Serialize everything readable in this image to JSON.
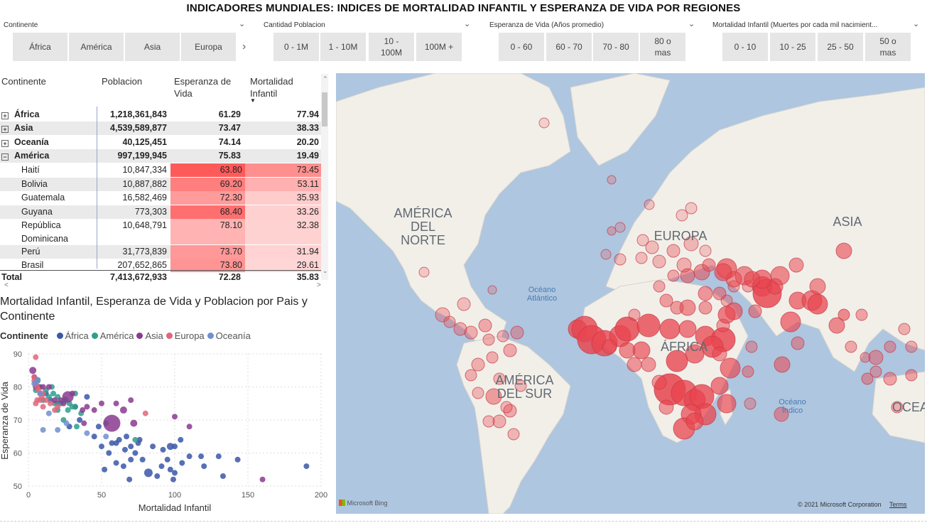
{
  "title": "INDICADORES MUNDIALES: INDICES DE MORTALIDAD INFANTIL Y ESPERANZA DE VIDA POR REGIONES",
  "slicers": [
    {
      "header": "Continente",
      "chips": [
        "África",
        "América",
        "Asia",
        "Europa"
      ],
      "more_icon": "chevron-right-icon"
    },
    {
      "header": "Cantidad Poblacion",
      "chips": [
        "0 - 1M",
        "1 - 10M",
        "10 - 100M",
        "100M +"
      ]
    },
    {
      "header": "Esperanza de Vida (Años promedio)",
      "chips": [
        "0 - 60",
        "60 - 70",
        "70 - 80",
        "80 o mas"
      ]
    },
    {
      "header": "Mortalidad Infantil (Muertes por cada mil nacimient...",
      "chips": [
        "0 - 10",
        "10 - 25",
        "25 - 50",
        "50 o mas"
      ]
    }
  ],
  "table": {
    "headers": {
      "continent": "Continente",
      "population": "Poblacion",
      "life": "Esperanza de Vida",
      "mortality": "Mortalidad Infantil"
    },
    "rows": [
      {
        "name": "África",
        "pop": "1,218,361,843",
        "life": "61.29",
        "mort": "77.94",
        "level": 0,
        "expand": "+"
      },
      {
        "name": "Asia",
        "pop": "4,539,589,877",
        "life": "73.47",
        "mort": "38.33",
        "level": 0,
        "expand": "+"
      },
      {
        "name": "Oceanía",
        "pop": "40,125,451",
        "life": "74.14",
        "mort": "20.20",
        "level": 0,
        "expand": "+"
      },
      {
        "name": "América",
        "pop": "997,199,945",
        "life": "75.83",
        "mort": "19.49",
        "level": 0,
        "expand": "−"
      },
      {
        "name": "Haití",
        "pop": "10,847,334",
        "life": "63.80",
        "mort": "73.45",
        "level": 1
      },
      {
        "name": "Bolivia",
        "pop": "10,887,882",
        "life": "69.20",
        "mort": "53.11",
        "level": 1
      },
      {
        "name": "Guatemala",
        "pop": "16,582,469",
        "life": "72.30",
        "mort": "35.93",
        "level": 1
      },
      {
        "name": "Guyana",
        "pop": "773,303",
        "life": "68.40",
        "mort": "33.26",
        "level": 1
      },
      {
        "name": "República Dominicana",
        "pop": "10,648,791",
        "life": "78.10",
        "mort": "32.38",
        "level": 1
      },
      {
        "name": "Perú",
        "pop": "31,773,839",
        "life": "73.70",
        "mort": "31.94",
        "level": 1
      },
      {
        "name": "Brasil",
        "pop": "207,652,865",
        "life": "73.80",
        "mort": "29.61",
        "level": 1
      }
    ],
    "total": {
      "name": "Total",
      "pop": "7,413,672,933",
      "life": "72.28",
      "mort": "35.83"
    },
    "scroll_left": "<",
    "scroll_right": ">"
  },
  "scatter": {
    "title": "Mortalidad Infantil, Esperanza de Vida y Poblacion por Pais y Continente",
    "legend_title": "Continente",
    "legend": [
      {
        "name": "África",
        "color": "#3a57a8"
      },
      {
        "name": "América",
        "color": "#2f9e8c"
      },
      {
        "name": "Asia",
        "color": "#8a3b8f"
      },
      {
        "name": "Europa",
        "color": "#e0667a"
      },
      {
        "name": "Oceanía",
        "color": "#6f8fd0"
      }
    ]
  },
  "chart_data": {
    "type": "scatter",
    "title": "Mortalidad Infantil, Esperanza de Vida y Poblacion por Pais y Continente",
    "xlabel": "Mortalidad Infantil",
    "ylabel": "Esperanza de Vida",
    "xlim": [
      0,
      200
    ],
    "ylim": [
      50,
      90
    ],
    "xticks": [
      "0",
      "50",
      "100",
      "150",
      "200"
    ],
    "yticks": [
      "50",
      "60",
      "70",
      "80",
      "90"
    ],
    "grid": true,
    "legend_position": "top",
    "series": [
      {
        "name": "África",
        "color": "#3a57a8",
        "points": [
          [
            190,
            56
          ],
          [
            143,
            58
          ],
          [
            130,
            59
          ],
          [
            120,
            56
          ],
          [
            110,
            59
          ],
          [
            105,
            57
          ],
          [
            100,
            54
          ],
          [
            97,
            62
          ],
          [
            100,
            62
          ],
          [
            95,
            58
          ],
          [
            92,
            61
          ],
          [
            88,
            53
          ],
          [
            85,
            62
          ],
          [
            82,
            54
          ],
          [
            78,
            58
          ],
          [
            76,
            64
          ],
          [
            73,
            60
          ],
          [
            70,
            58
          ],
          [
            67,
            65
          ],
          [
            65,
            56
          ],
          [
            62,
            64
          ],
          [
            60,
            57
          ],
          [
            57,
            63
          ],
          [
            55,
            60
          ],
          [
            52,
            55
          ],
          [
            50,
            62
          ],
          [
            48,
            68
          ],
          [
            45,
            65
          ],
          [
            40,
            77
          ],
          [
            35,
            70
          ],
          [
            32,
            74
          ],
          [
            28,
            68
          ],
          [
            20,
            75
          ],
          [
            15,
            76
          ],
          [
            12,
            78
          ],
          [
            70,
            62
          ],
          [
            75,
            63
          ],
          [
            60,
            63
          ],
          [
            104,
            64
          ],
          [
            91,
            56
          ],
          [
            97,
            55
          ],
          [
            66,
            61
          ],
          [
            69,
            52
          ],
          [
            99,
            52
          ],
          [
            118,
            59
          ],
          [
            133,
            53
          ]
        ],
        "sizes": [
          4,
          4,
          4,
          4,
          4,
          4,
          4,
          5,
          4,
          4,
          4,
          4,
          4,
          6,
          4,
          4,
          4,
          4,
          4,
          4,
          4,
          4,
          4,
          4,
          4,
          4,
          4,
          4,
          4,
          4,
          4,
          4,
          4,
          4,
          4,
          4,
          4,
          4,
          4,
          4,
          4,
          4,
          4,
          4,
          4,
          4
        ]
      },
      {
        "name": "América",
        "color": "#2f9e8c",
        "points": [
          [
            73,
            64
          ],
          [
            53,
            69
          ],
          [
            36,
            72
          ],
          [
            33,
            68
          ],
          [
            32,
            78
          ],
          [
            32,
            74
          ],
          [
            30,
            74
          ],
          [
            25,
            76
          ],
          [
            22,
            75
          ],
          [
            20,
            77
          ],
          [
            18,
            75
          ],
          [
            16,
            80
          ],
          [
            14,
            77
          ],
          [
            12,
            79
          ],
          [
            10,
            76
          ],
          [
            8,
            80
          ],
          [
            6,
            82
          ],
          [
            5,
            79
          ],
          [
            20,
            73
          ],
          [
            28,
            75
          ],
          [
            17,
            78
          ],
          [
            24,
            70
          ],
          [
            27,
            73
          ]
        ],
        "sizes": [
          4,
          4,
          4,
          4,
          4,
          4,
          4,
          5,
          4,
          4,
          4,
          4,
          4,
          4,
          4,
          4,
          5,
          4,
          4,
          4,
          4,
          4,
          4
        ]
      },
      {
        "name": "Asia",
        "color": "#8a3b8f",
        "points": [
          [
            57,
            69
          ],
          [
            72,
            69
          ],
          [
            160,
            52
          ],
          [
            110,
            68
          ],
          [
            100,
            71
          ],
          [
            70,
            76
          ],
          [
            65,
            73
          ],
          [
            60,
            75
          ],
          [
            50,
            75
          ],
          [
            45,
            73
          ],
          [
            40,
            74
          ],
          [
            37,
            73
          ],
          [
            30,
            78
          ],
          [
            27,
            77
          ],
          [
            24,
            75
          ],
          [
            22,
            76
          ],
          [
            18,
            76
          ],
          [
            14,
            80
          ],
          [
            10,
            80
          ],
          [
            7,
            80
          ],
          [
            5,
            80
          ],
          [
            4,
            83
          ],
          [
            3,
            85
          ],
          [
            38,
            69
          ]
        ],
        "sizes": [
          12,
          5,
          4,
          4,
          4,
          4,
          5,
          4,
          4,
          4,
          4,
          4,
          4,
          8,
          4,
          4,
          4,
          4,
          4,
          4,
          4,
          4,
          5,
          4
        ]
      },
      {
        "name": "Europa",
        "color": "#e0667a",
        "points": [
          [
            5,
            89
          ],
          [
            4,
            83
          ],
          [
            4,
            82
          ],
          [
            5,
            81
          ],
          [
            6,
            80
          ],
          [
            7,
            79
          ],
          [
            8,
            78
          ],
          [
            9,
            77
          ],
          [
            10,
            78
          ],
          [
            6,
            76
          ],
          [
            5,
            75
          ],
          [
            8,
            76
          ],
          [
            12,
            76
          ],
          [
            15,
            75
          ],
          [
            10,
            74
          ],
          [
            18,
            73
          ],
          [
            20,
            74
          ],
          [
            80,
            72
          ]
        ],
        "sizes": [
          4,
          4,
          4,
          4,
          4,
          4,
          4,
          4,
          4,
          4,
          4,
          4,
          4,
          4,
          4,
          4,
          4,
          4
        ]
      },
      {
        "name": "Oceanía",
        "color": "#6f8fd0",
        "points": [
          [
            53,
            65
          ],
          [
            40,
            66
          ],
          [
            20,
            67
          ],
          [
            10,
            67
          ],
          [
            8,
            78
          ],
          [
            6,
            82
          ],
          [
            14,
            72
          ],
          [
            26,
            69
          ],
          [
            4,
            81
          ]
        ],
        "sizes": [
          4,
          4,
          4,
          4,
          4,
          4,
          4,
          4,
          4
        ]
      }
    ]
  },
  "map": {
    "labels": [
      "AMÉRICA DEL NORTE",
      "EUROPA",
      "ASIA",
      "ÁFRICA",
      "AMÉRICA DEL SUR",
      "OCEA"
    ],
    "oceans": [
      "Océano Atlántico",
      "Océano Índico"
    ],
    "logo": "Microsoft Bing",
    "copyright": "© 2021 Microsoft Corporation",
    "terms": "Terms",
    "colors": {
      "water": "#aec6e0",
      "land": "#f2efe9",
      "bubble": "#e8454f"
    }
  }
}
